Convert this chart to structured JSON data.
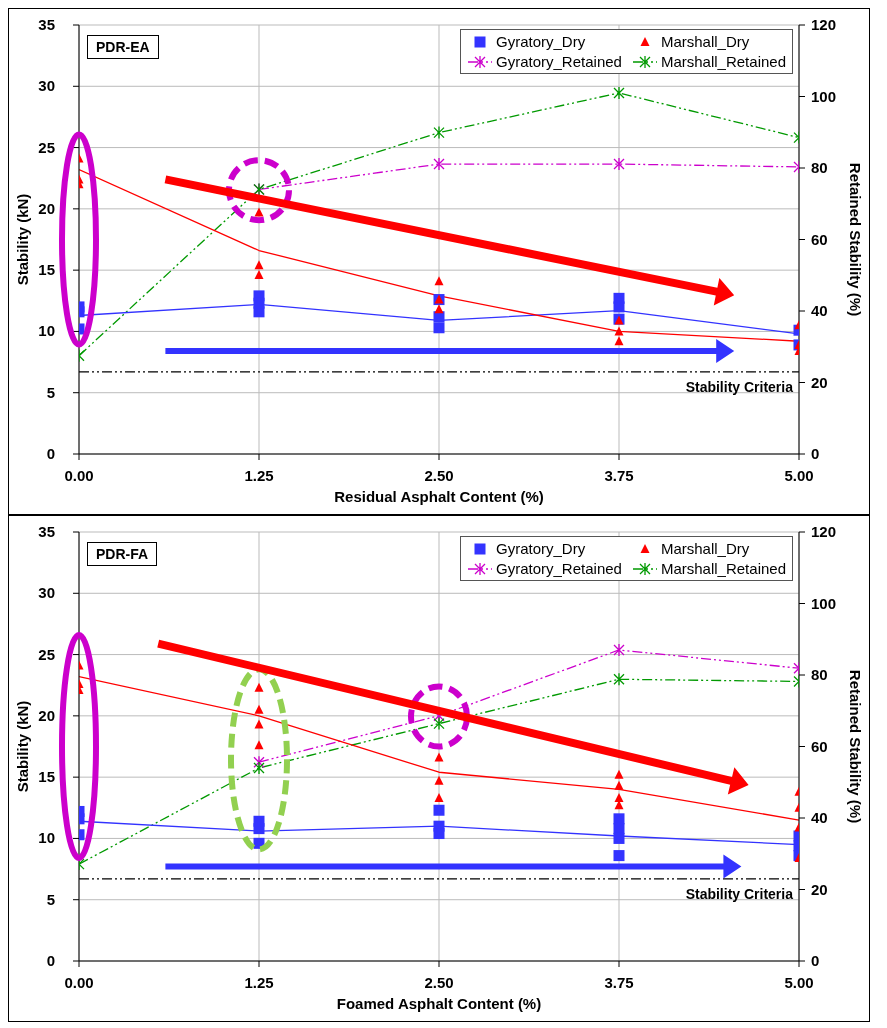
{
  "chart_data": [
    {
      "type": "line",
      "title": "PDR-EA",
      "xlabel": "Residual Asphalt Content (%)",
      "ylabel": "Stability (kN)",
      "y2label": "Retained Stability (%)",
      "xlim": [
        0,
        5
      ],
      "xticks": [
        {
          "value": 0,
          "label": "0.00"
        },
        {
          "value": 1.25,
          "label": "1.25"
        },
        {
          "value": 2.5,
          "label": "2.50"
        },
        {
          "value": 3.75,
          "label": "3.75"
        },
        {
          "value": 5,
          "label": "5.00"
        }
      ],
      "ylim": [
        0,
        35
      ],
      "yticks": [
        0,
        5,
        10,
        15,
        20,
        25,
        30,
        35
      ],
      "y2lim": [
        0,
        120
      ],
      "y2ticks": [
        0,
        20,
        40,
        60,
        80,
        100,
        120
      ],
      "grid": true,
      "legend": "top right",
      "series": [
        {
          "name": "Gyratory_Dry",
          "type": "scatter",
          "marker": "square",
          "color": "#3333ff",
          "x": [
            0,
            0,
            0,
            1.25,
            1.25,
            1.25,
            2.5,
            2.5,
            2.5,
            3.75,
            3.75,
            3.75,
            5,
            5
          ],
          "values": [
            12.0,
            11.6,
            10.2,
            12.9,
            12.3,
            11.6,
            12.6,
            11.2,
            10.3,
            12.7,
            12.0,
            11.0,
            10.1,
            8.9
          ]
        },
        {
          "name": "Marshall_Dry",
          "type": "scatter",
          "marker": "triangle",
          "color": "#ff0000",
          "x": [
            0,
            0,
            0,
            1.25,
            1.25,
            1.25,
            2.5,
            2.5,
            2.5,
            3.75,
            3.75,
            3.75,
            5,
            5,
            5
          ],
          "values": [
            24.1,
            22.4,
            22.0,
            19.7,
            15.4,
            14.6,
            14.1,
            12.6,
            11.8,
            10.9,
            10.0,
            9.2,
            10.5,
            8.9,
            8.4
          ]
        },
        {
          "name": "Gyratory_Retained",
          "type": "line",
          "axis": "y2",
          "marker": "cross",
          "line_style": "dashed",
          "color": "#cc00cc",
          "x": [
            1.25,
            2.5,
            3.75,
            5
          ],
          "values": [
            74.0,
            81.1,
            81.1,
            80.3
          ]
        },
        {
          "name": "Marshall_Retained",
          "type": "line",
          "axis": "y2",
          "marker": "cross",
          "line_style": "dashed",
          "color": "#009900",
          "x": [
            0,
            1.25,
            2.5,
            3.75,
            5
          ],
          "values": [
            27.5,
            74.0,
            89.9,
            101,
            88.5
          ]
        },
        {
          "type": "line",
          "marker": "none",
          "line_style": "solid",
          "color": "#3333ff",
          "x": [
            0,
            1.25,
            2.5,
            3.75,
            5
          ],
          "values": [
            11.3,
            12.2,
            10.9,
            11.7,
            9.8
          ]
        },
        {
          "type": "line",
          "marker": "none",
          "line_style": "solid",
          "color": "#ff0000",
          "x": [
            0,
            1.25,
            2.5,
            3.75,
            5
          ],
          "values": [
            23.2,
            16.6,
            12.9,
            10.0,
            9.2
          ]
        }
      ],
      "ref_lines": [
        {
          "axis": "y",
          "value": 6.7,
          "label": "Stability Criteria",
          "color": "#000000",
          "line_style": "dashed"
        }
      ]
    },
    {
      "type": "line",
      "title": "PDR-FA",
      "xlabel": "Foamed Asphalt Content (%)",
      "ylabel": "Stability (kN)",
      "y2label": "Retained Stability (%)",
      "xlim": [
        0,
        5
      ],
      "xticks": [
        {
          "value": 0,
          "label": "0.00"
        },
        {
          "value": 1.25,
          "label": "1.25"
        },
        {
          "value": 2.5,
          "label": "2.50"
        },
        {
          "value": 3.75,
          "label": "3.75"
        },
        {
          "value": 5,
          "label": "5.00"
        }
      ],
      "ylim": [
        0,
        35
      ],
      "yticks": [
        0,
        5,
        10,
        15,
        20,
        25,
        30,
        35
      ],
      "y2lim": [
        0,
        120
      ],
      "y2ticks": [
        0,
        20,
        40,
        60,
        80,
        100,
        120
      ],
      "grid": true,
      "legend": "top right",
      "series": [
        {
          "name": "Gyratory_Dry",
          "type": "scatter",
          "marker": "square",
          "color": "#3333ff",
          "x": [
            0,
            0,
            0,
            1.25,
            1.25,
            1.25,
            2.5,
            2.5,
            2.5,
            3.75,
            3.75,
            3.75,
            3.75,
            5,
            5,
            5
          ],
          "values": [
            12.2,
            11.6,
            10.3,
            11.4,
            10.8,
            9.6,
            12.3,
            11.0,
            10.4,
            11.6,
            10.8,
            10.0,
            8.6,
            10.2,
            9.4,
            8.6
          ]
        },
        {
          "name": "Marshall_Dry",
          "type": "scatter",
          "marker": "triangle",
          "color": "#ff0000",
          "x": [
            0,
            0,
            0,
            1.25,
            1.25,
            1.25,
            1.25,
            2.5,
            2.5,
            2.5,
            3.75,
            3.75,
            3.75,
            3.75,
            5,
            5,
            5,
            5
          ],
          "values": [
            24.1,
            22.6,
            22.1,
            22.3,
            20.5,
            19.3,
            17.6,
            16.6,
            14.7,
            13.3,
            15.2,
            14.3,
            13.3,
            12.7,
            13.8,
            12.5,
            10.9,
            8.4
          ]
        },
        {
          "name": "Gyratory_Retained",
          "type": "line",
          "axis": "y2",
          "marker": "cross",
          "line_style": "dashed",
          "color": "#cc00cc",
          "x": [
            1.25,
            2.5,
            3.75,
            5
          ],
          "values": [
            55.6,
            68.6,
            87.0,
            81.9
          ]
        },
        {
          "name": "Marshall_Retained",
          "type": "line",
          "axis": "y2",
          "marker": "cross",
          "line_style": "dashed",
          "color": "#009900",
          "x": [
            0,
            1.25,
            2.5,
            3.75,
            5
          ],
          "values": [
            27.1,
            54.0,
            66.4,
            78.8,
            78.2
          ]
        },
        {
          "type": "line",
          "marker": "none",
          "line_style": "solid",
          "color": "#3333ff",
          "x": [
            0,
            1.25,
            2.5,
            3.75,
            5
          ],
          "values": [
            11.4,
            10.6,
            11.0,
            10.2,
            9.5
          ]
        },
        {
          "type": "line",
          "marker": "none",
          "line_style": "solid",
          "color": "#ff0000",
          "x": [
            0,
            1.25,
            2.5,
            3.75,
            5
          ],
          "values": [
            23.2,
            20.0,
            15.4,
            14.0,
            11.5
          ]
        }
      ],
      "ref_lines": [
        {
          "axis": "y",
          "value": 6.7,
          "label": "Stability Criteria",
          "color": "#000000",
          "line_style": "dashed"
        }
      ]
    }
  ]
}
